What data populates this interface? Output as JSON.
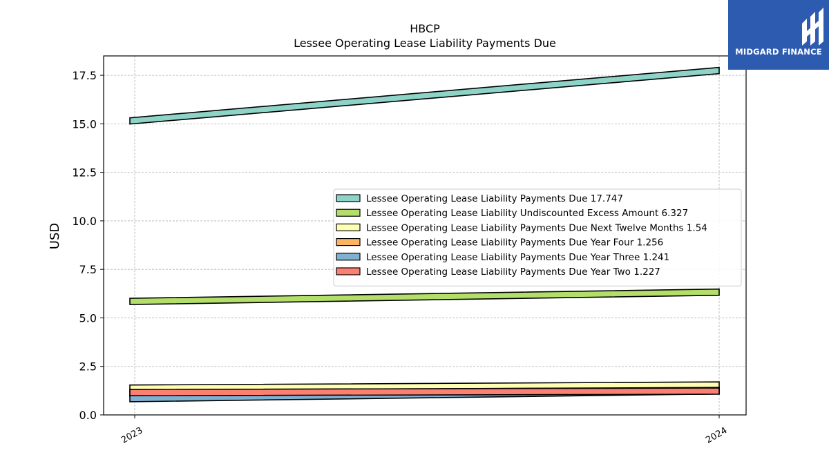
{
  "brand": {
    "name": "MIDGARD FINANCE",
    "logo_icon": "midgard-m-logo-icon",
    "background_color": "#2d5bb0"
  },
  "chart_data": {
    "type": "area",
    "title": "HBCP",
    "subtitle": "Lessee Operating Lease Liability Payments Due",
    "xlabel": "",
    "ylabel": "USD",
    "x": [
      "2023",
      "2024"
    ],
    "ylim": [
      0,
      18.5
    ],
    "yticks": [
      "0.0",
      "2.5",
      "5.0",
      "7.5",
      "10.0",
      "12.5",
      "15.0",
      "17.5"
    ],
    "grid": true,
    "legend_position": "center-right",
    "series": [
      {
        "name": "Lessee Operating Lease Liability Payments Due  17.747",
        "values": [
          15.15,
          17.747
        ],
        "color": "#8dd3c7"
      },
      {
        "name": "Lessee Operating Lease Liability Undiscounted Excess Amount  6.327",
        "values": [
          5.85,
          6.327
        ],
        "color": "#b3de69"
      },
      {
        "name": "Lessee Operating Lease Liability Payments Due Next Twelve Months  1.54",
        "values": [
          1.38,
          1.54
        ],
        "color": "#ffffb3"
      },
      {
        "name": "Lessee Operating Lease Liability Payments Due Year Four  1.256",
        "values": [
          1.12,
          1.256
        ],
        "color": "#fdb462"
      },
      {
        "name": "Lessee Operating Lease Liability Payments Due Year Three  1.241",
        "values": [
          0.84,
          1.241
        ],
        "color": "#80b1d3"
      },
      {
        "name": "Lessee Operating Lease Liability Payments Due Year Two  1.227",
        "values": [
          1.15,
          1.227
        ],
        "color": "#fb8072"
      }
    ]
  }
}
